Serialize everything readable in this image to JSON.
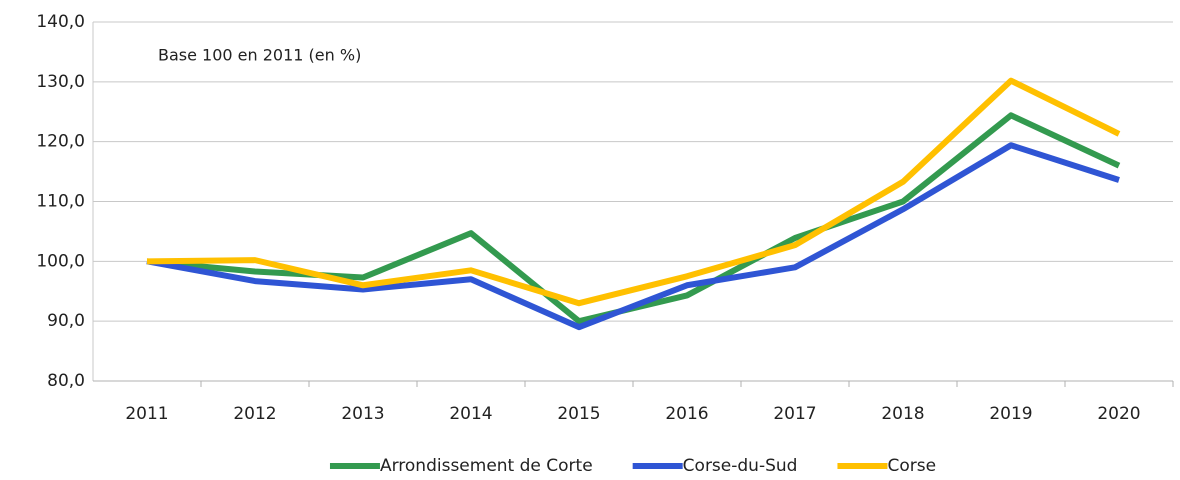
{
  "chart_data": {
    "type": "line",
    "annotation": "Base 100 en 2011 (en %)",
    "categories": [
      "2011",
      "2012",
      "2013",
      "2014",
      "2015",
      "2016",
      "2017",
      "2018",
      "2019",
      "2020"
    ],
    "series": [
      {
        "name": "Arrondissement de Corte",
        "color": "#339a4f",
        "values": [
          100.0,
          98.3,
          97.3,
          104.7,
          90.0,
          94.3,
          103.9,
          110.0,
          124.4,
          116.0
        ]
      },
      {
        "name": "Corse-du-Sud",
        "color": "#2f55d4",
        "values": [
          100.0,
          96.7,
          95.3,
          97.0,
          89.0,
          96.0,
          99.0,
          108.7,
          119.4,
          113.6
        ]
      },
      {
        "name": "Corse",
        "color": "#ffc000",
        "values": [
          100.0,
          100.2,
          96.0,
          98.5,
          93.0,
          97.5,
          102.7,
          113.3,
          130.2,
          121.3
        ]
      }
    ],
    "ylim": [
      80,
      140
    ],
    "yticks": [
      {
        "value": 80,
        "label": "80,0"
      },
      {
        "value": 90,
        "label": "90,0"
      },
      {
        "value": 100,
        "label": "100,0"
      },
      {
        "value": 110,
        "label": "110,0"
      },
      {
        "value": 120,
        "label": "120,0"
      },
      {
        "value": 130,
        "label": "130,0"
      },
      {
        "value": 140,
        "label": "140,0"
      }
    ],
    "grid": true,
    "legend": "bottom"
  }
}
